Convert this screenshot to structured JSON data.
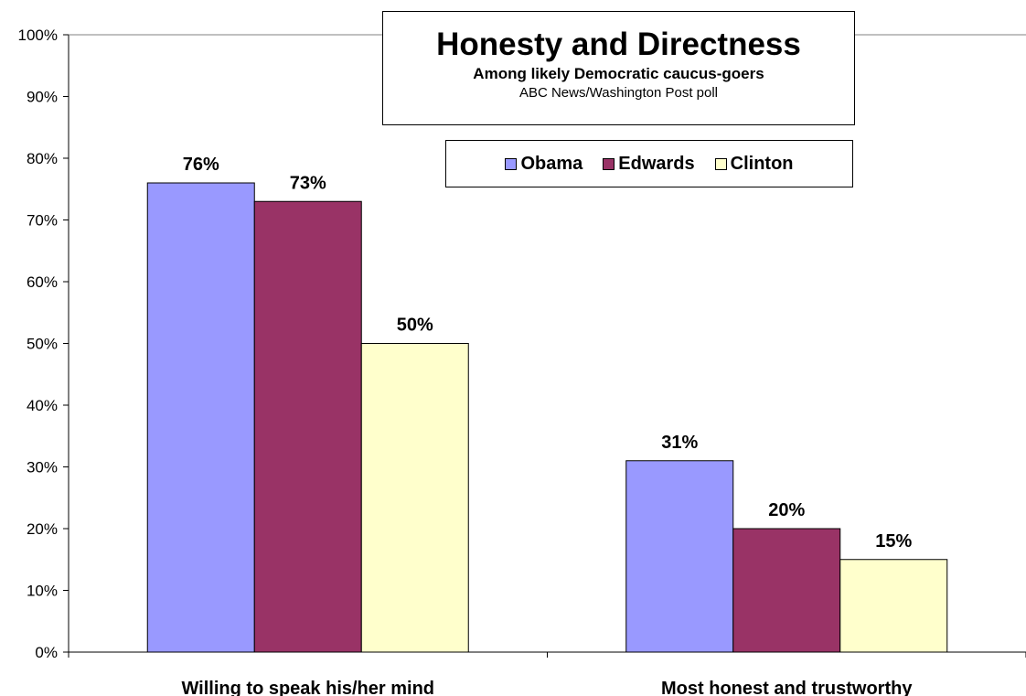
{
  "chart_data": {
    "type": "bar",
    "title": "Honesty and Directness",
    "subtitle": "Among likely Democratic caucus-goers",
    "note": "ABC News/Washington Post poll",
    "categories": [
      "Willing to speak his/her mind",
      "Most honest and trustworthy"
    ],
    "series": [
      {
        "name": "Obama",
        "values": [
          76,
          31
        ],
        "color": "#9999ff"
      },
      {
        "name": "Edwards",
        "values": [
          73,
          20
        ],
        "color": "#993366"
      },
      {
        "name": "Clinton",
        "values": [
          50,
          15
        ],
        "color": "#ffffcc"
      }
    ],
    "data_labels": [
      [
        "76%",
        "31%"
      ],
      [
        "73%",
        "20%"
      ],
      [
        "50%",
        "15%"
      ]
    ],
    "yticks": [
      "0%",
      "10%",
      "20%",
      "30%",
      "40%",
      "50%",
      "60%",
      "70%",
      "80%",
      "90%",
      "100%"
    ],
    "ylim": [
      0,
      100
    ],
    "grid": false,
    "legend_position": "top-right"
  }
}
